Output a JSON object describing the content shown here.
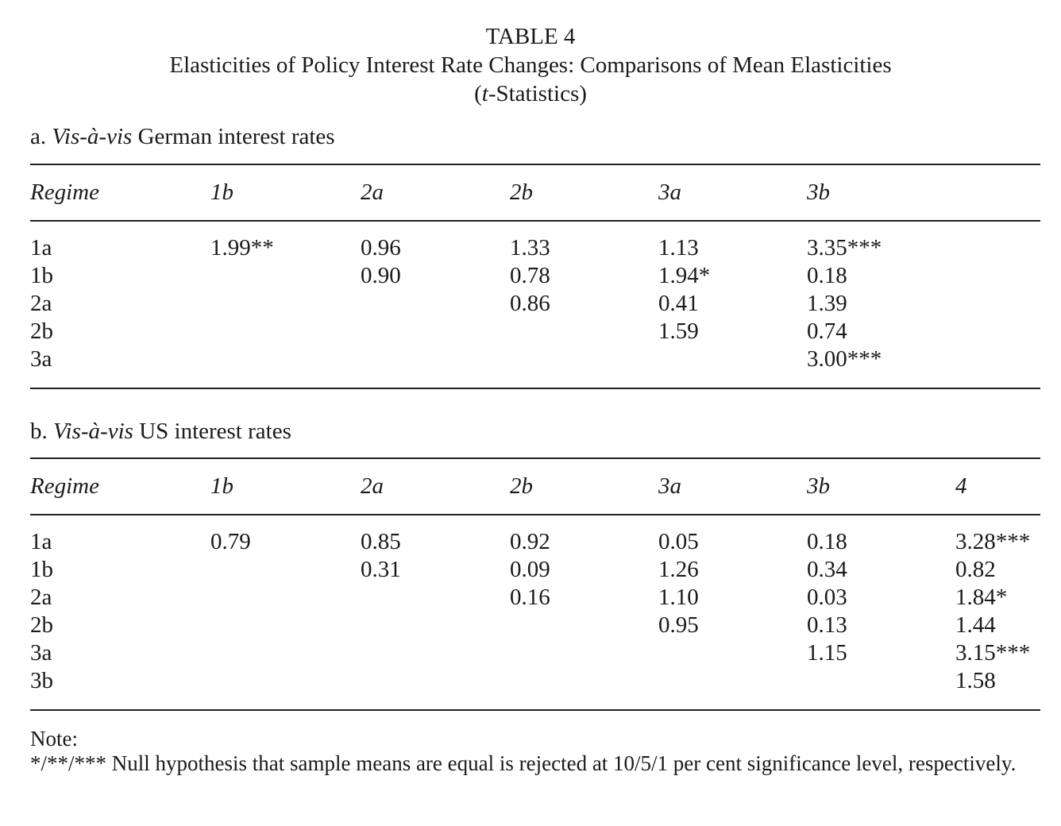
{
  "table": {
    "number": "TABLE 4",
    "title": "Elasticities of Policy Interest Rate Changes: Comparisons of Mean Elasticities",
    "subtitle_italic": "t",
    "subtitle_rest": "-Statistics)",
    "subtitle_open": "("
  },
  "panel_a": {
    "prefix": "a. ",
    "italic": "Vis-à-vis",
    "suffix": " German interest rates",
    "headers": [
      "Regime",
      "1b",
      "2a",
      "2b",
      "3a",
      "3b"
    ],
    "rows": [
      [
        "1a",
        "1.99**",
        "0.96",
        "1.33",
        "1.13",
        "3.35***"
      ],
      [
        "1b",
        "",
        "0.90",
        "0.78",
        "1.94*",
        "0.18"
      ],
      [
        "2a",
        "",
        "",
        "0.86",
        "0.41",
        "1.39"
      ],
      [
        "2b",
        "",
        "",
        "",
        "1.59",
        "0.74"
      ],
      [
        "3a",
        "",
        "",
        "",
        "",
        "3.00***"
      ]
    ]
  },
  "panel_b": {
    "prefix": "b. ",
    "italic": "Vis-à-vis",
    "suffix": " US interest rates",
    "headers": [
      "Regime",
      "1b",
      "2a",
      "2b",
      "3a",
      "3b",
      "4"
    ],
    "rows": [
      [
        "1a",
        "0.79",
        "0.85",
        "0.92",
        "0.05",
        "0.18",
        "3.28***"
      ],
      [
        "1b",
        "",
        "0.31",
        "0.09",
        "1.26",
        "0.34",
        "0.82"
      ],
      [
        "2a",
        "",
        "",
        "0.16",
        "1.10",
        "0.03",
        "1.84*"
      ],
      [
        "2b",
        "",
        "",
        "",
        "0.95",
        "0.13",
        "1.44"
      ],
      [
        "3a",
        "",
        "",
        "",
        "",
        "1.15",
        "3.15***"
      ],
      [
        "3b",
        "",
        "",
        "",
        "",
        "",
        "1.58"
      ]
    ]
  },
  "note": {
    "label": "Note:",
    "text": "*/**/*** Null hypothesis that sample means are equal is rejected at 10/5/1 per cent significance level, respectively."
  }
}
